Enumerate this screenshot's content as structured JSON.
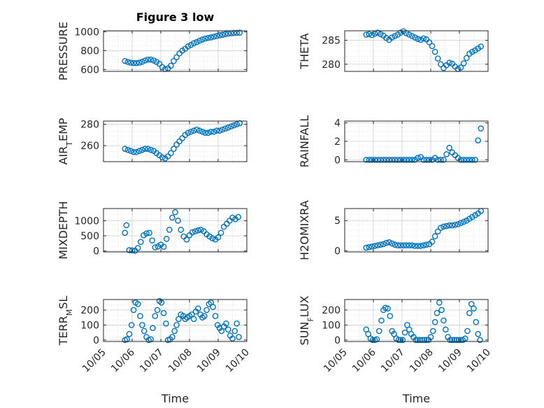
{
  "chart_data": [
    {
      "type": "scatter",
      "title": "Figure 3 low",
      "ylabel": "PRESSURE",
      "xlabel": "",
      "xlim": [
        0,
        5
      ],
      "ylim": [
        580,
        1010
      ],
      "yticks": [
        {
          "v": 600,
          "label": "600"
        },
        {
          "v": 800,
          "label": "800"
        },
        {
          "v": 1000,
          "label": "1000"
        }
      ],
      "xticks": [],
      "grid": true,
      "series": [
        {
          "x": [
            0.75,
            0.85,
            0.95,
            1.05,
            1.15,
            1.25,
            1.35,
            1.45,
            1.55,
            1.65,
            1.75,
            1.85,
            1.95,
            2.05,
            2.15,
            2.25,
            2.35,
            2.45,
            2.55,
            2.65,
            2.75,
            2.85,
            2.95,
            3.05,
            3.15,
            3.25,
            3.35,
            3.45,
            3.55,
            3.65,
            3.75,
            3.85,
            3.95,
            4.05,
            4.15,
            4.25,
            4.35,
            4.45,
            4.55,
            4.65,
            4.75
          ],
          "y": [
            690,
            680,
            672,
            668,
            668,
            672,
            682,
            695,
            705,
            705,
            695,
            680,
            660,
            625,
            605,
            612,
            640,
            690,
            730,
            770,
            800,
            820,
            845,
            860,
            878,
            890,
            905,
            918,
            928,
            935,
            940,
            948,
            955,
            962,
            968,
            975,
            980,
            984,
            986,
            988,
            990
          ]
        }
      ]
    },
    {
      "type": "scatter",
      "title": "",
      "ylabel": "THETA",
      "xlabel": "",
      "xlim": [
        0,
        5
      ],
      "ylim": [
        278.5,
        287
      ],
      "yticks": [
        {
          "v": 280,
          "label": "280"
        },
        {
          "v": 285,
          "label": "285"
        }
      ],
      "xticks": [],
      "grid": true,
      "series": [
        {
          "x": [
            0.75,
            0.85,
            0.95,
            1.05,
            1.15,
            1.25,
            1.35,
            1.45,
            1.55,
            1.65,
            1.75,
            1.85,
            1.95,
            2.05,
            2.15,
            2.25,
            2.35,
            2.45,
            2.55,
            2.65,
            2.75,
            2.85,
            2.95,
            3.05,
            3.15,
            3.25,
            3.35,
            3.45,
            3.55,
            3.65,
            3.75,
            3.85,
            3.95,
            4.05,
            4.15,
            4.25,
            4.35,
            4.45,
            4.55,
            4.65,
            4.75
          ],
          "y": [
            286.2,
            286.3,
            286.1,
            286.4,
            286.6,
            286.3,
            286.0,
            285.5,
            285.1,
            285.6,
            285.9,
            286.2,
            286.6,
            286.9,
            286.5,
            286.2,
            285.9,
            285.6,
            285.3,
            285.1,
            285.4,
            285.2,
            284.6,
            283.8,
            282.6,
            281.2,
            280.0,
            279.2,
            279.8,
            280.3,
            280.1,
            279.5,
            279.0,
            279.3,
            280.2,
            281.3,
            282.2,
            282.6,
            282.9,
            283.3,
            283.7
          ]
        }
      ]
    },
    {
      "type": "scatter",
      "title": "",
      "ylabel": "AIR_TEMP",
      "xlabel": "",
      "xlim": [
        0,
        5
      ],
      "ylim": [
        245,
        283
      ],
      "yticks": [
        {
          "v": 260,
          "label": "260"
        },
        {
          "v": 280,
          "label": "280"
        }
      ],
      "xticks": [],
      "grid": true,
      "series": [
        {
          "x": [
            0.75,
            0.85,
            0.95,
            1.05,
            1.15,
            1.25,
            1.35,
            1.45,
            1.55,
            1.65,
            1.75,
            1.85,
            1.95,
            2.05,
            2.15,
            2.25,
            2.35,
            2.45,
            2.55,
            2.65,
            2.75,
            2.85,
            2.95,
            3.05,
            3.15,
            3.25,
            3.35,
            3.45,
            3.55,
            3.65,
            3.75,
            3.85,
            3.95,
            4.05,
            4.15,
            4.25,
            4.35,
            4.45,
            4.55,
            4.65,
            4.75
          ],
          "y": [
            257,
            256,
            255,
            254,
            254,
            255,
            256,
            257,
            257,
            256,
            255,
            253,
            251,
            249,
            248,
            250,
            253,
            257,
            261,
            264,
            267,
            270,
            272,
            273,
            274,
            275,
            274,
            273,
            272,
            272,
            273,
            273,
            274,
            274,
            275,
            276,
            277,
            278,
            279,
            280,
            281
          ]
        }
      ]
    },
    {
      "type": "scatter",
      "title": "",
      "ylabel": "RAINFALL",
      "xlabel": "",
      "xlim": [
        0,
        5
      ],
      "ylim": [
        -0.2,
        4.2
      ],
      "yticks": [
        {
          "v": 0,
          "label": "0"
        },
        {
          "v": 2,
          "label": "2"
        },
        {
          "v": 4,
          "label": "4"
        }
      ],
      "xticks": [],
      "grid": true,
      "series": [
        {
          "x": [
            0.75,
            0.85,
            0.95,
            1.05,
            1.15,
            1.25,
            1.35,
            1.45,
            1.55,
            1.65,
            1.75,
            1.85,
            1.95,
            2.05,
            2.15,
            2.25,
            2.35,
            2.45,
            2.55,
            2.65,
            2.75,
            2.85,
            2.95,
            3.05,
            3.15,
            3.25,
            3.35,
            3.45,
            3.55,
            3.65,
            3.75,
            3.85,
            3.95,
            4.05,
            4.15,
            4.25,
            4.35,
            4.45,
            4.55,
            4.65,
            4.75
          ],
          "y": [
            0,
            0,
            0,
            0,
            0,
            0,
            0,
            0,
            0,
            0,
            0,
            0,
            0,
            0,
            0,
            0,
            0,
            0,
            0.2,
            0.3,
            0,
            0,
            0,
            0,
            0.2,
            0,
            0,
            0,
            0.6,
            1.3,
            0.8,
            0.5,
            0.2,
            0,
            0,
            0,
            0,
            0,
            0,
            2.1,
            3.4
          ]
        }
      ]
    },
    {
      "type": "scatter",
      "title": "",
      "ylabel": "MIXDEPTH",
      "xlabel": "",
      "xlim": [
        0,
        5
      ],
      "ylim": [
        -30,
        1400
      ],
      "yticks": [
        {
          "v": 0,
          "label": "0"
        },
        {
          "v": 500,
          "label": "500"
        },
        {
          "v": 1000,
          "label": "1000"
        }
      ],
      "xticks": [],
      "grid": true,
      "series": [
        {
          "x": [
            0.75,
            0.8,
            0.9,
            1.0,
            1.1,
            1.2,
            1.3,
            1.4,
            1.5,
            1.6,
            1.7,
            1.8,
            1.9,
            2.0,
            2.1,
            2.2,
            2.3,
            2.4,
            2.5,
            2.6,
            2.7,
            2.8,
            2.9,
            3.0,
            3.1,
            3.2,
            3.3,
            3.4,
            3.5,
            3.6,
            3.7,
            3.8,
            3.9,
            4.0,
            4.1,
            4.2,
            4.3,
            4.4,
            4.5,
            4.6,
            4.7
          ],
          "y": [
            600,
            850,
            30,
            20,
            10,
            100,
            300,
            520,
            580,
            600,
            350,
            120,
            150,
            210,
            140,
            400,
            700,
            1100,
            1280,
            1000,
            700,
            480,
            380,
            520,
            620,
            650,
            680,
            700,
            650,
            550,
            480,
            420,
            380,
            450,
            600,
            800,
            900,
            1000,
            1100,
            1050,
            1120
          ]
        }
      ]
    },
    {
      "type": "scatter",
      "title": "",
      "ylabel": "H2OMIXRA",
      "xlabel": "",
      "xlim": [
        0,
        5
      ],
      "ylim": [
        -0.2,
        7
      ],
      "yticks": [
        {
          "v": 0,
          "label": "0"
        },
        {
          "v": 5,
          "label": "5"
        }
      ],
      "xticks": [],
      "grid": true,
      "series": [
        {
          "x": [
            0.75,
            0.85,
            0.95,
            1.05,
            1.15,
            1.25,
            1.35,
            1.45,
            1.55,
            1.65,
            1.75,
            1.85,
            1.95,
            2.05,
            2.15,
            2.25,
            2.35,
            2.45,
            2.55,
            2.65,
            2.75,
            2.85,
            2.95,
            3.05,
            3.15,
            3.25,
            3.35,
            3.45,
            3.55,
            3.65,
            3.75,
            3.85,
            3.95,
            4.05,
            4.15,
            4.25,
            4.35,
            4.45,
            4.55,
            4.65,
            4.75
          ],
          "y": [
            0.5,
            0.6,
            0.7,
            0.8,
            0.9,
            1.0,
            1.1,
            1.3,
            1.4,
            1.2,
            1.0,
            0.9,
            0.9,
            0.9,
            0.9,
            0.9,
            0.9,
            0.8,
            0.8,
            0.8,
            0.9,
            1.0,
            1.1,
            1.5,
            2.4,
            3.2,
            3.8,
            4.0,
            4.1,
            4.2,
            4.2,
            4.3,
            4.4,
            4.6,
            4.8,
            5.0,
            5.3,
            5.6,
            5.9,
            6.2,
            6.6
          ]
        }
      ]
    },
    {
      "type": "scatter",
      "title": "",
      "ylabel": "TERR_MSL",
      "xlabel": "Time",
      "xlim": [
        0,
        5
      ],
      "ylim": [
        -10,
        270
      ],
      "yticks": [
        {
          "v": 0,
          "label": "0"
        },
        {
          "v": 100,
          "label": "100"
        },
        {
          "v": 200,
          "label": "200"
        }
      ],
      "xticks": [
        {
          "v": 0,
          "label": "10/05"
        },
        {
          "v": 1,
          "label": "10/06"
        },
        {
          "v": 2,
          "label": "10/07"
        },
        {
          "v": 3,
          "label": "10/08"
        },
        {
          "v": 4,
          "label": "10/09"
        },
        {
          "v": 5,
          "label": "10/10"
        }
      ],
      "grid": true,
      "series": [
        {
          "x": [
            0.75,
            0.82,
            0.9,
            0.98,
            1.05,
            1.12,
            1.2,
            1.28,
            1.35,
            1.42,
            1.5,
            1.58,
            1.65,
            1.72,
            1.8,
            1.88,
            1.95,
            2.02,
            2.1,
            2.18,
            2.25,
            2.32,
            2.4,
            2.48,
            2.55,
            2.62,
            2.7,
            2.78,
            2.85,
            2.92,
            3.0,
            3.08,
            3.15,
            3.22,
            3.3,
            3.38,
            3.45,
            3.52,
            3.6,
            3.68,
            3.75,
            3.82,
            3.9,
            3.98,
            4.05,
            4.12,
            4.2,
            4.28,
            4.35,
            4.42,
            4.5,
            4.58,
            4.65,
            4.72
          ],
          "y": [
            0,
            5,
            40,
            100,
            200,
            250,
            240,
            160,
            100,
            60,
            20,
            0,
            5,
            80,
            160,
            200,
            260,
            250,
            180,
            110,
            0,
            5,
            20,
            60,
            100,
            140,
            170,
            160,
            140,
            150,
            160,
            170,
            140,
            190,
            210,
            170,
            150,
            160,
            200,
            240,
            250,
            220,
            160,
            100,
            80,
            60,
            90,
            110,
            70,
            30,
            10,
            60,
            110,
            20
          ]
        }
      ]
    },
    {
      "type": "scatter",
      "title": "",
      "ylabel": "SUN_FLUX",
      "xlabel": "Time",
      "xlim": [
        0,
        5
      ],
      "ylim": [
        -10,
        270
      ],
      "yticks": [
        {
          "v": 0,
          "label": "0"
        },
        {
          "v": 100,
          "label": "100"
        },
        {
          "v": 200,
          "label": "200"
        }
      ],
      "xticks": [
        {
          "v": 0,
          "label": "10/05"
        },
        {
          "v": 1,
          "label": "10/06"
        },
        {
          "v": 2,
          "label": "10/07"
        },
        {
          "v": 3,
          "label": "10/08"
        },
        {
          "v": 4,
          "label": "10/09"
        },
        {
          "v": 5,
          "label": "10/10"
        }
      ],
      "grid": true,
      "series": [
        {
          "x": [
            0.75,
            0.82,
            0.9,
            0.98,
            1.05,
            1.12,
            1.2,
            1.28,
            1.35,
            1.42,
            1.5,
            1.58,
            1.65,
            1.72,
            1.8,
            1.88,
            1.95,
            2.02,
            2.1,
            2.18,
            2.25,
            2.32,
            2.4,
            2.48,
            2.55,
            2.62,
            2.7,
            2.78,
            2.85,
            2.92,
            3.0,
            3.08,
            3.15,
            3.22,
            3.3,
            3.38,
            3.45,
            3.52,
            3.6,
            3.68,
            3.75,
            3.82,
            3.9,
            3.98,
            4.05,
            4.12,
            4.2,
            4.28,
            4.35,
            4.42,
            4.5,
            4.58,
            4.65,
            4.72
          ],
          "y": [
            70,
            40,
            10,
            0,
            0,
            5,
            60,
            130,
            200,
            215,
            210,
            160,
            60,
            40,
            10,
            0,
            0,
            0,
            50,
            100,
            70,
            40,
            20,
            0,
            0,
            0,
            0,
            0,
            0,
            0,
            20,
            60,
            120,
            180,
            250,
            200,
            130,
            70,
            20,
            0,
            0,
            0,
            0,
            0,
            0,
            0,
            10,
            60,
            180,
            240,
            210,
            120,
            40,
            0
          ]
        }
      ]
    }
  ]
}
